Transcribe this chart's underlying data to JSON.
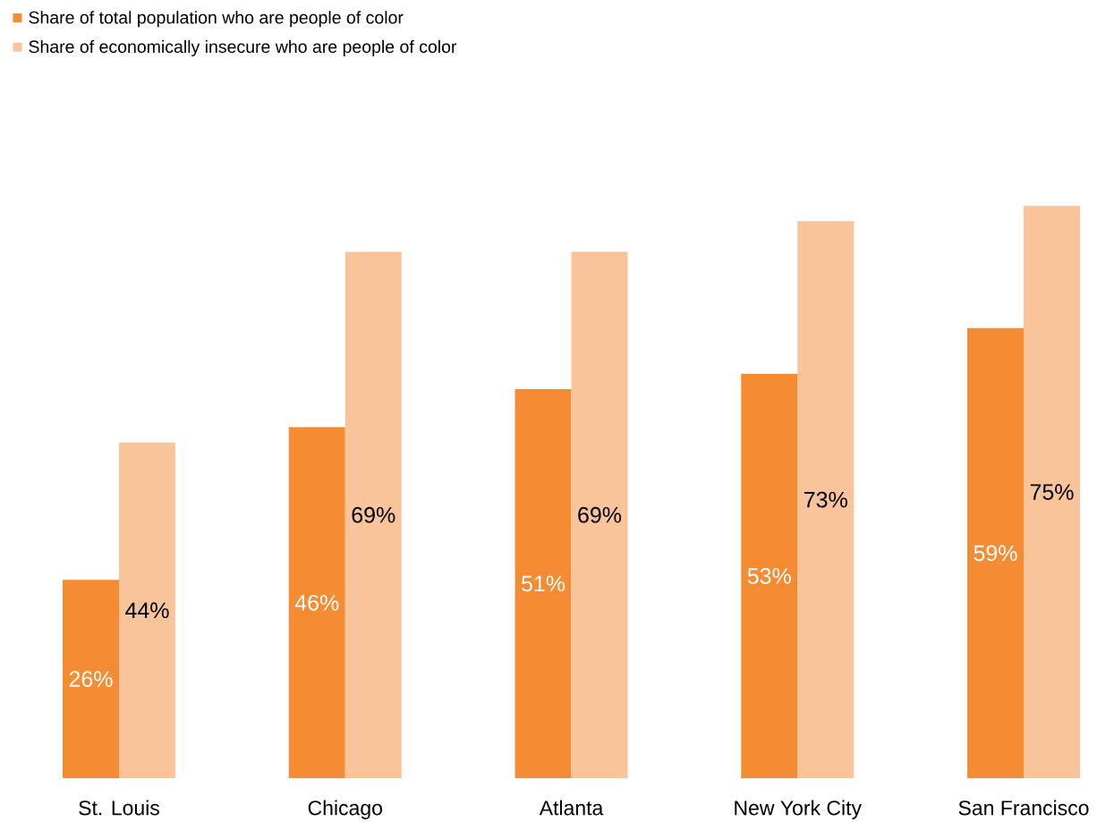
{
  "chart_data": {
    "type": "bar",
    "categories": [
      "St. Louis",
      "Chicago",
      "Atlanta",
      "New York City",
      "San Francisco"
    ],
    "series": [
      {
        "name": "Share of total population who are people of color",
        "color": "#f58b33",
        "values": [
          26,
          46,
          51,
          53,
          59
        ],
        "value_labels": [
          "26%",
          "46%",
          "51%",
          "53%",
          "59%"
        ]
      },
      {
        "name": "Share of economically insecure who are people of color",
        "color": "#f9c499",
        "values": [
          44,
          69,
          69,
          73,
          75
        ],
        "value_labels": [
          "44%",
          "69%",
          "69%",
          "73%",
          "75%"
        ]
      }
    ],
    "legend": "top left"
  }
}
